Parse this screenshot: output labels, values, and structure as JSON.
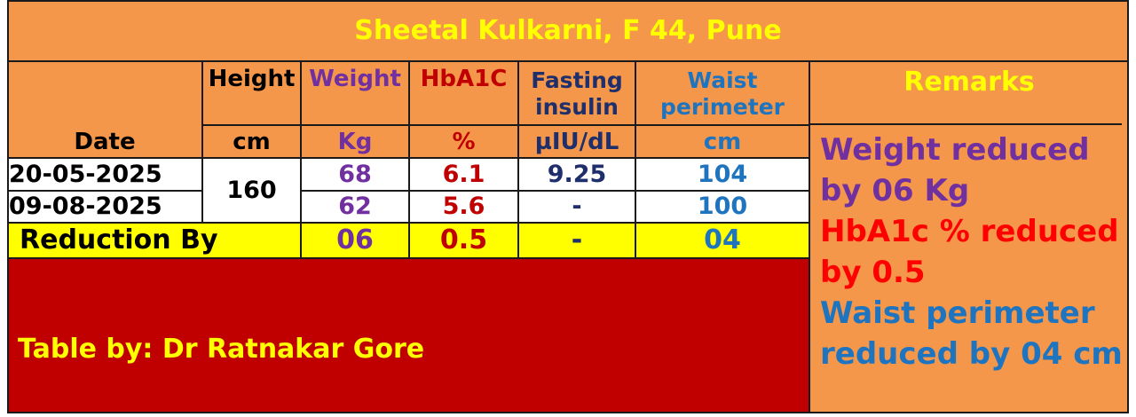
{
  "title": "Sheetal Kulkarni, F 44, Pune",
  "headers": {
    "date": "Date",
    "height": "Height",
    "weight": "Weight",
    "hba1c": "HbA1C",
    "fasting_insulin": "Fasting insulin",
    "waist_perimeter": "Waist perimeter",
    "remarks": "Remarks"
  },
  "units": {
    "height": "cm",
    "weight": "Kg",
    "hba1c": "%",
    "fasting_insulin": "µIU/dL",
    "waist_perimeter": "cm"
  },
  "rows": [
    {
      "date": "20-05-2025",
      "weight": "68",
      "hba1c": "6.1",
      "fasting_insulin": "9.25",
      "waist": "104"
    },
    {
      "date": "09-08-2025",
      "weight": "62",
      "hba1c": "5.6",
      "fasting_insulin": "-",
      "waist": "100"
    }
  ],
  "height_value": "160",
  "reduction": {
    "label": "Reduction By",
    "weight": "06",
    "hba1c": "0.5",
    "fasting_insulin": "-",
    "waist": "04"
  },
  "remarks": [
    "Weight reduced by 06 Kg",
    "HbA1c % reduced by 0.5",
    "Waist perimeter reduced by 04 cm"
  ],
  "credit": "Table by: Dr Ratnakar Gore",
  "colors": {
    "orange": "#f4974a",
    "yellow": "#ffff00",
    "dark_red": "#c00000",
    "purple": "#7030a0",
    "navy": "#1f2f6b",
    "blue": "#1f74bf",
    "bright_red": "#ff0000"
  }
}
